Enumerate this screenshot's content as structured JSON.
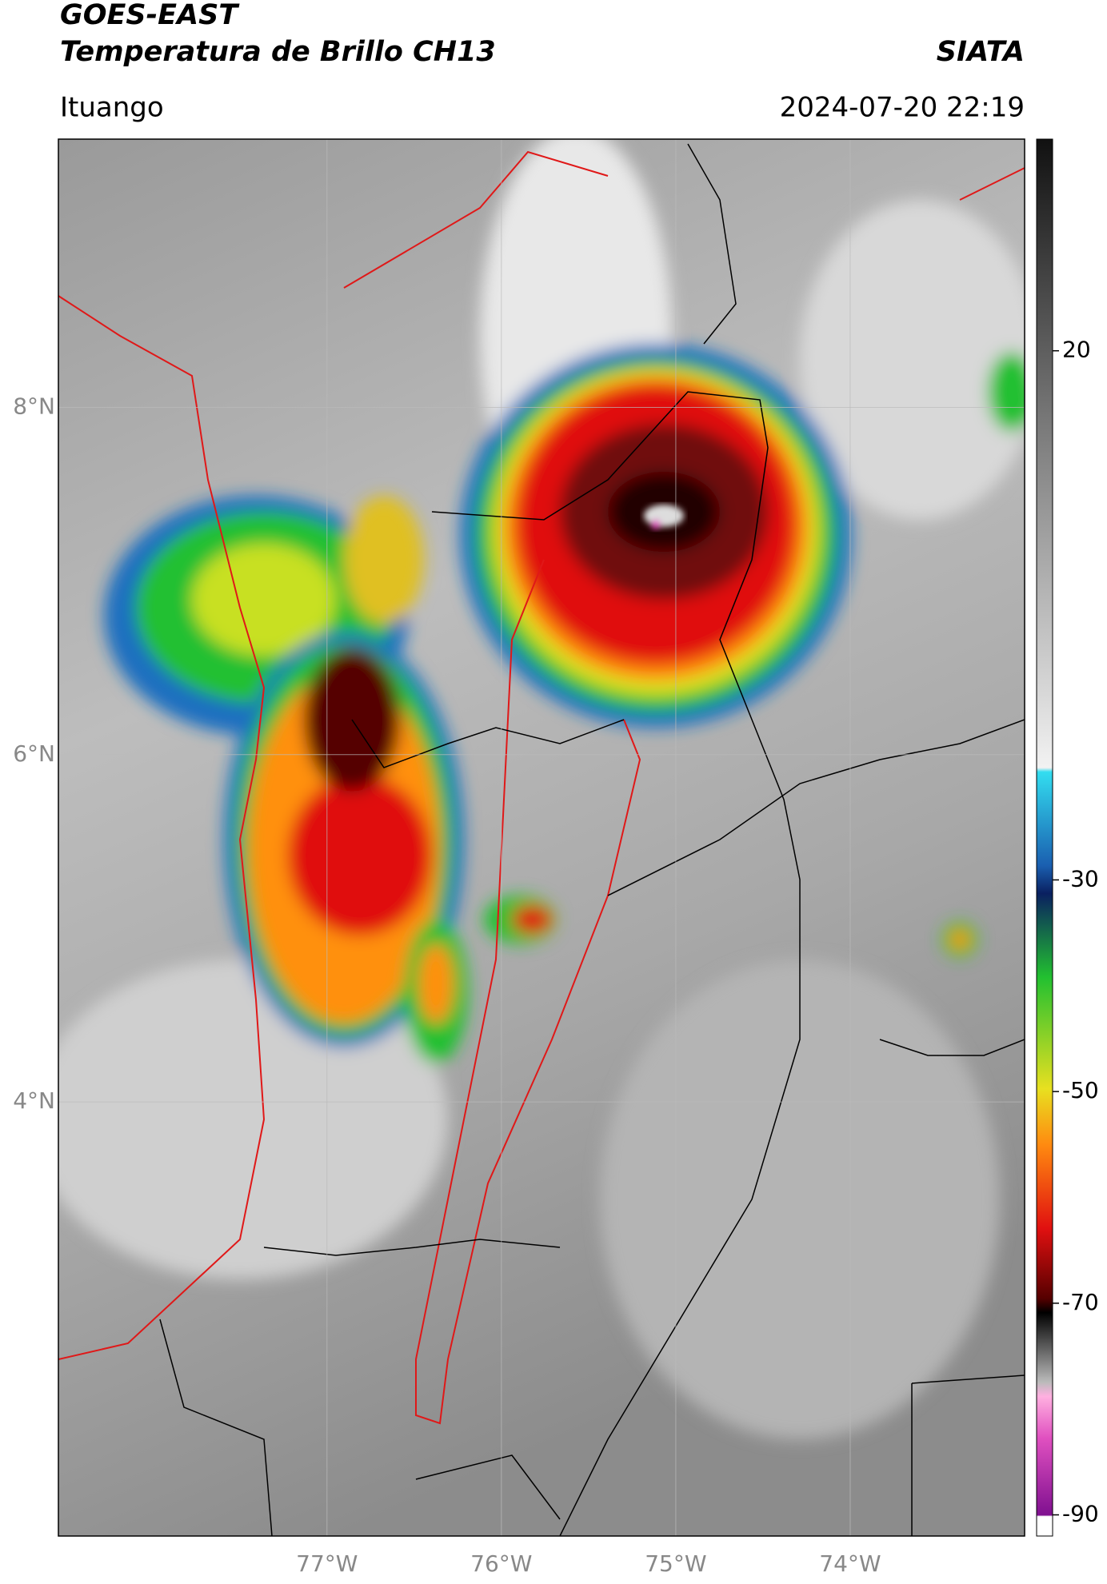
{
  "header": {
    "title": "GOES-EAST",
    "subtitle": "Temperatura de Brillo CH13",
    "source": "SIATA",
    "location": "Ituango",
    "datetime": "2024-07-20 22:19"
  },
  "map": {
    "lat_range": [
      1.5,
      9.545
    ],
    "lon_range": [
      -78.54,
      -73.0
    ],
    "lat_ticks": [
      {
        "value": 8,
        "label": "8°N"
      },
      {
        "value": 6,
        "label": "6°N"
      },
      {
        "value": 4,
        "label": "4°N"
      }
    ],
    "lon_ticks": [
      {
        "value": -77,
        "label": "77°W"
      },
      {
        "value": -76,
        "label": "76°W"
      },
      {
        "value": -75,
        "label": "75°W"
      },
      {
        "value": -74,
        "label": "74°W"
      }
    ]
  },
  "colorbar": {
    "lim": [
      -92,
      40
    ],
    "ticks": [
      20,
      -30,
      -50,
      -70,
      -90
    ]
  }
}
